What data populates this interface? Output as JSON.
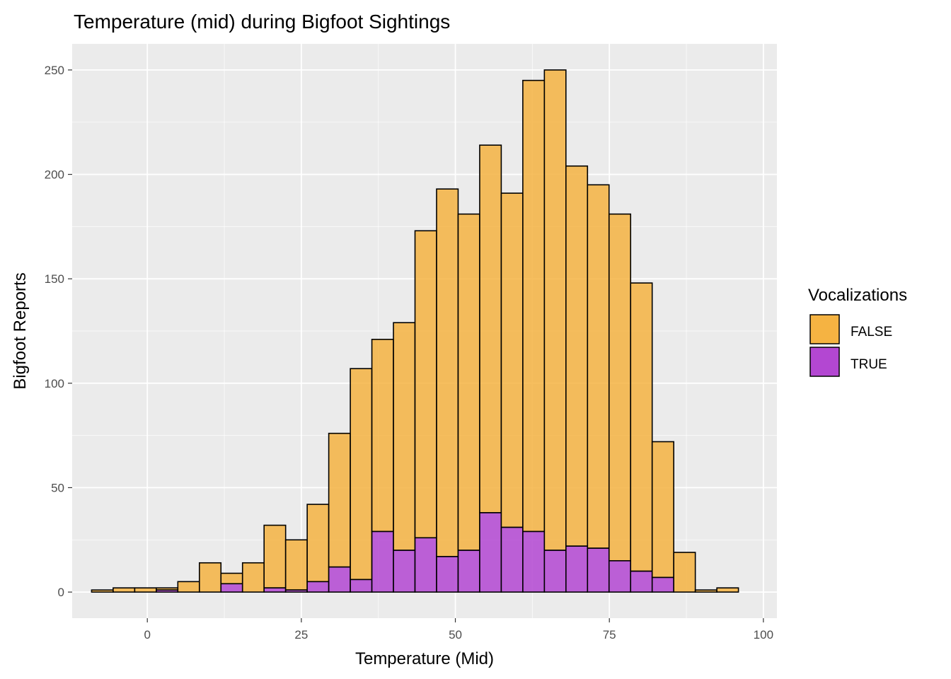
{
  "chart_data": {
    "type": "bar",
    "title": "Temperature (mid) during Bigfoot Sightings",
    "xlabel": "Temperature (Mid)",
    "ylabel": "Bigfoot Reports",
    "xlim": [
      -12.2,
      102.2
    ],
    "ylim": [
      -12.5,
      262.5
    ],
    "x_ticks": [
      0,
      25,
      50,
      75,
      100
    ],
    "y_ticks": [
      0,
      50,
      100,
      150,
      200,
      250
    ],
    "bin_width": 3.5,
    "bin_centers": [
      -7.3,
      -3.8,
      -0.3,
      3.2,
      6.7,
      10.2,
      13.7,
      17.2,
      20.7,
      24.2,
      27.7,
      31.2,
      34.7,
      38.2,
      41.7,
      45.2,
      48.7,
      52.2,
      55.7,
      59.2,
      62.7,
      66.2,
      69.7,
      73.2,
      76.7,
      80.2,
      83.7,
      87.2,
      90.7,
      94.2,
      97.7
    ],
    "series": [
      {
        "name": "FALSE",
        "values": [
          1,
          2,
          2,
          1,
          5,
          14,
          5,
          14,
          30,
          24,
          37,
          64,
          101,
          92,
          109,
          147,
          176,
          161,
          176,
          160,
          216,
          230,
          182,
          174,
          166,
          138,
          65,
          19,
          1,
          2,
          0
        ]
      },
      {
        "name": "TRUE",
        "values": [
          0,
          0,
          0,
          1,
          0,
          0,
          4,
          0,
          2,
          1,
          5,
          12,
          6,
          29,
          20,
          26,
          17,
          20,
          38,
          31,
          29,
          20,
          22,
          21,
          15,
          10,
          7,
          0,
          0,
          0,
          0
        ]
      }
    ],
    "stacked": true,
    "grid": true,
    "legend": {
      "title": "Vocalizations",
      "placement": "right"
    }
  },
  "colors": {
    "false_fill": "#F5B342",
    "true_fill": "#B347D2",
    "panel_bg": "#EBEBEB",
    "grid_major": "#FFFFFF",
    "bar_outline": "#000000"
  }
}
